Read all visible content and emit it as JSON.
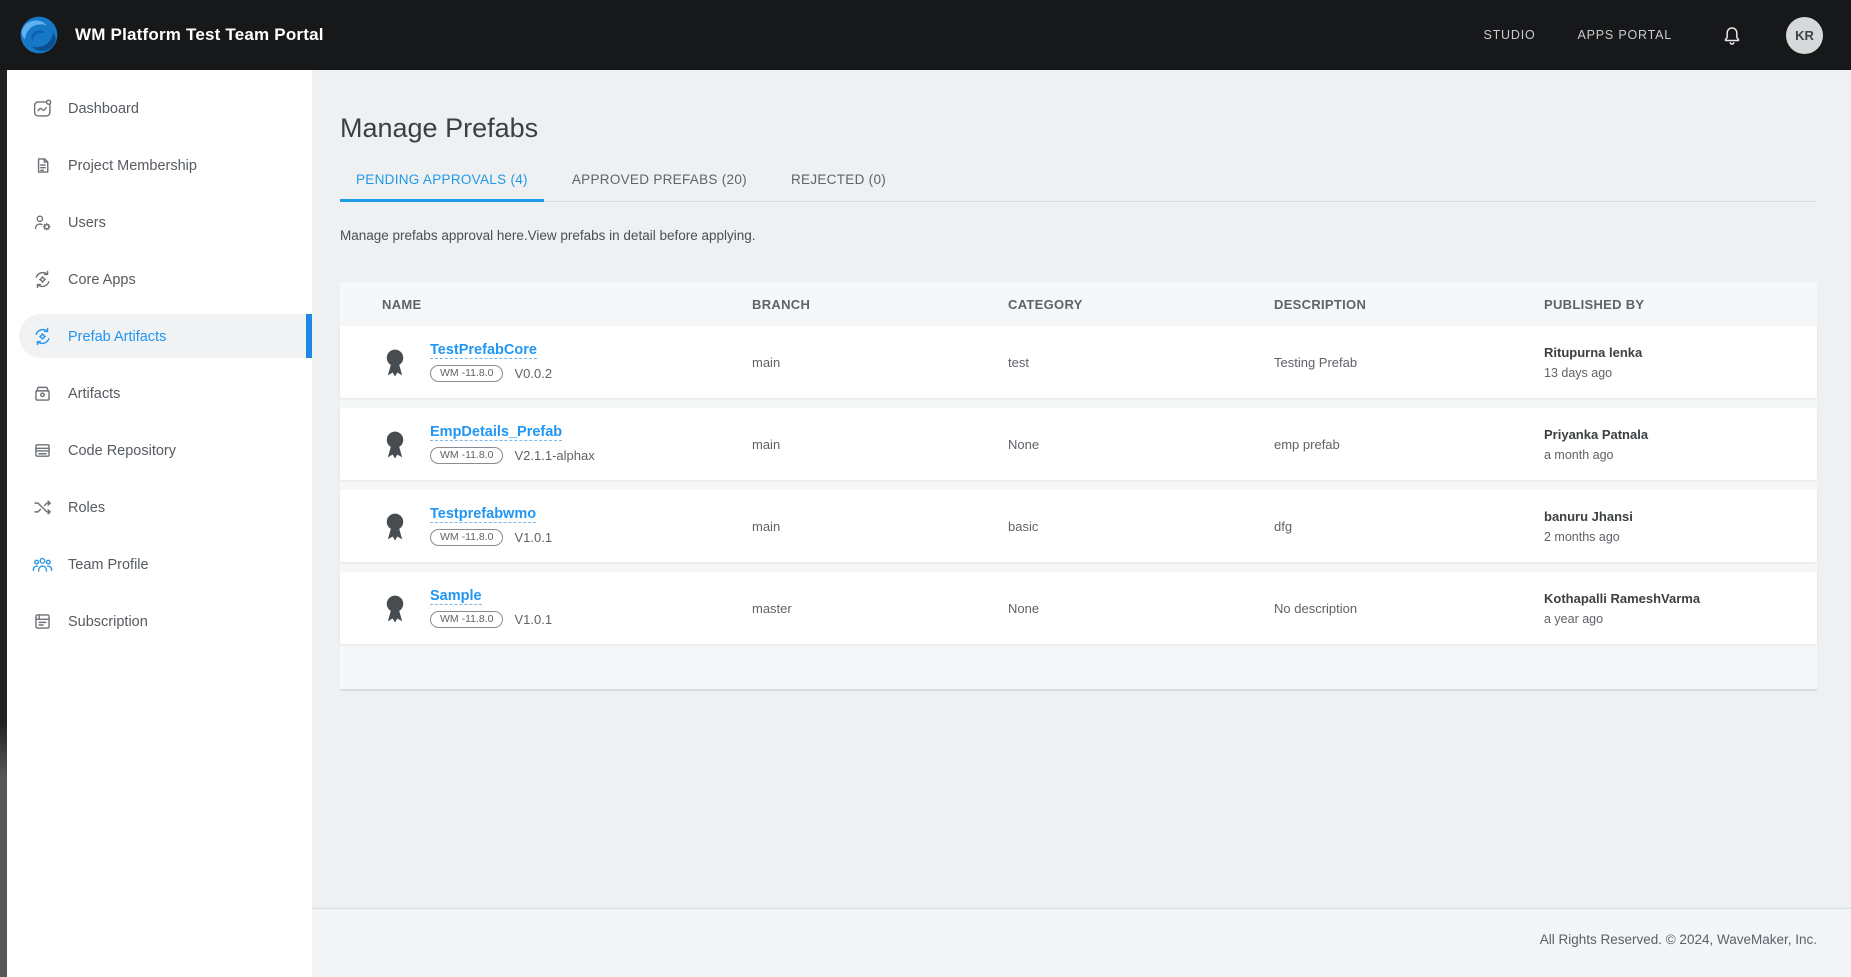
{
  "colors": {
    "accent": "#1e9be6",
    "link": "#2196f3",
    "header_bg": "#17181a",
    "active_indicator": "#1e88e5"
  },
  "header": {
    "title": "WM Platform Test Team Portal",
    "nav": [
      {
        "label": "STUDIO"
      },
      {
        "label": "APPS PORTAL"
      }
    ],
    "bell_icon": "notification-bell-icon",
    "avatar_initials": "KR"
  },
  "sidebar": {
    "items": [
      {
        "label": "Dashboard",
        "icon": "dashboard-icon",
        "active": false
      },
      {
        "label": "Project Membership",
        "icon": "project-membership-icon",
        "active": false
      },
      {
        "label": "Users",
        "icon": "users-gear-icon",
        "active": false
      },
      {
        "label": "Core Apps",
        "icon": "core-apps-sync-icon",
        "active": false
      },
      {
        "label": "Prefab Artifacts",
        "icon": "prefab-artifacts-sync-icon",
        "active": true
      },
      {
        "label": "Artifacts",
        "icon": "artifacts-archive-icon",
        "active": false
      },
      {
        "label": "Code Repository",
        "icon": "code-repository-icon",
        "active": false
      },
      {
        "label": "Roles",
        "icon": "roles-shuffle-icon",
        "active": false
      },
      {
        "label": "Team Profile",
        "icon": "team-profile-icon",
        "active": false
      },
      {
        "label": "Subscription",
        "icon": "subscription-icon",
        "active": false
      }
    ]
  },
  "main": {
    "page_title": "Manage Prefabs",
    "tabs": [
      {
        "label": "PENDING APPROVALS (4)",
        "active": true
      },
      {
        "label": "APPROVED PREFABS (20)",
        "active": false
      },
      {
        "label": "REJECTED (0)",
        "active": false
      }
    ],
    "description": "Manage prefabs approval here.View prefabs in detail before applying.",
    "table": {
      "columns": [
        "NAME",
        "BRANCH",
        "CATEGORY",
        "DESCRIPTION",
        "PUBLISHED BY"
      ],
      "rows": [
        {
          "name": "TestPrefabCore",
          "wm_version": "WM -11.8.0",
          "version": "V0.0.2",
          "branch": "main",
          "category": "test",
          "description": "Testing Prefab",
          "published_by": "Ritupurna lenka",
          "published_when": "13 days ago"
        },
        {
          "name": "EmpDetails_Prefab",
          "wm_version": "WM -11.8.0",
          "version": "V2.1.1-alphax",
          "branch": "main",
          "category": "None",
          "description": "emp prefab",
          "published_by": "Priyanka Patnala",
          "published_when": "a month ago"
        },
        {
          "name": "Testprefabwmo",
          "wm_version": "WM -11.8.0",
          "version": "V1.0.1",
          "branch": "main",
          "category": "basic",
          "description": "dfg",
          "published_by": "banuru Jhansi",
          "published_when": "2 months ago"
        },
        {
          "name": "Sample",
          "wm_version": "WM -11.8.0",
          "version": "V1.0.1",
          "branch": "master",
          "category": "None",
          "description": "No description",
          "published_by": "Kothapalli RameshVarma",
          "published_when": "a year ago"
        }
      ]
    }
  },
  "footer": {
    "copyright": "All Rights Reserved. © 2024, WaveMaker, Inc."
  }
}
